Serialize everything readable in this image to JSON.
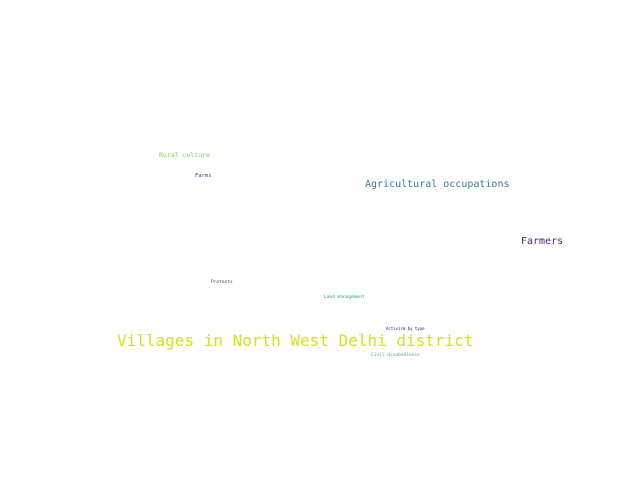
{
  "wordcloud": {
    "words": [
      {
        "text": "Villages in North West Delhi district",
        "color": "#d2e21b"
      },
      {
        "text": "Agricultural occupations",
        "color": "#3b7c8d"
      },
      {
        "text": "Farmers",
        "color": "#482878"
      },
      {
        "text": "Rural culture",
        "color": "#7ad151"
      },
      {
        "text": "Farms",
        "color": "#3e4989"
      },
      {
        "text": "Protests",
        "color": "#46337e"
      },
      {
        "text": "Land management",
        "color": "#1fa187"
      },
      {
        "text": "Activism by type",
        "color": "#3d1866"
      },
      {
        "text": "Civil disobedience",
        "color": "#35b779"
      }
    ]
  }
}
